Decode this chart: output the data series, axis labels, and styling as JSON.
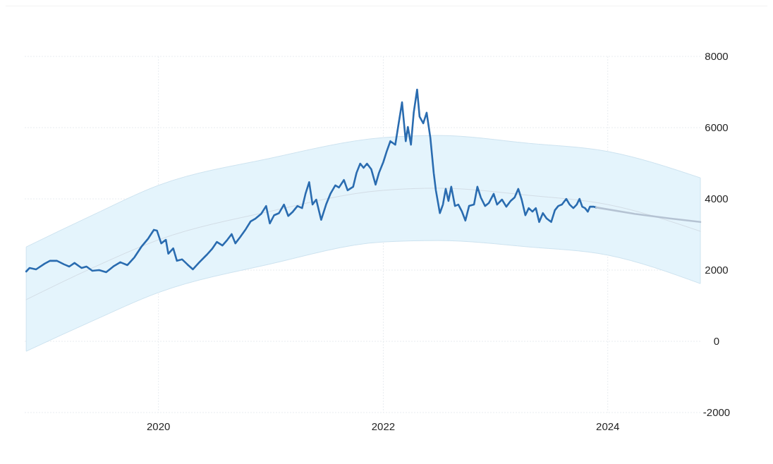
{
  "chart_data": {
    "type": "line",
    "xlim": [
      "2018-10-23",
      "2024-10-28"
    ],
    "xticks": [
      "2020",
      "2022",
      "2024"
    ],
    "ylim": [
      -2000,
      8000
    ],
    "yticks": [
      -2000,
      0,
      2000,
      4000,
      6000,
      8000
    ],
    "grid": true,
    "marker": "none",
    "line_style": "solid",
    "series": [
      {
        "color": "#d3dde6",
        "x": [
          "2018-10-28",
          "2019-05-31",
          "2020-01-01",
          "2020-12-24",
          "2022-01-01",
          "2022-06-28",
          "2023-04-19",
          "2024-01-01",
          "2024-10-28"
        ],
        "values": [
          1170,
          2060,
          2850,
          3640,
          4240,
          4300,
          4100,
          3840,
          3090
        ],
        "lower": [
          -280,
          570,
          1370,
          2160,
          2790,
          2830,
          2650,
          2420,
          1620
        ],
        "upper": [
          2650,
          3540,
          4380,
          5130,
          5720,
          5780,
          5560,
          5330,
          4590
        ]
      },
      {
        "color": "#2a6cb0",
        "x": [
          "2018-10-28",
          "2018-11-08",
          "2018-11-29",
          "2018-12-27",
          "2019-01-13",
          "2019-02-05",
          "2019-02-28",
          "2019-03-17",
          "2019-04-03",
          "2019-04-26",
          "2019-05-12",
          "2019-05-31",
          "2019-06-22",
          "2019-07-15",
          "2019-08-07",
          "2019-08-30",
          "2019-09-22",
          "2019-10-15",
          "2019-11-06",
          "2019-11-29",
          "2019-12-17",
          "2019-12-27",
          "2020-01-10",
          "2020-01-25",
          "2020-02-02",
          "2020-02-18",
          "2020-03-01",
          "2020-03-18",
          "2020-04-04",
          "2020-04-22",
          "2020-05-13",
          "2020-06-05",
          "2020-06-23",
          "2020-07-09",
          "2020-07-27",
          "2020-08-12",
          "2020-08-26",
          "2020-09-07",
          "2020-09-23",
          "2020-10-11",
          "2020-10-27",
          "2020-11-12",
          "2020-11-30",
          "2020-12-16",
          "2020-12-28",
          "2021-01-11",
          "2021-01-27",
          "2021-02-12",
          "2021-02-26",
          "2021-03-13",
          "2021-03-28",
          "2021-04-12",
          "2021-04-23",
          "2021-05-05",
          "2021-05-16",
          "2021-05-28",
          "2021-06-13",
          "2021-06-29",
          "2021-07-13",
          "2021-07-29",
          "2021-08-10",
          "2021-08-26",
          "2021-09-07",
          "2021-09-25",
          "2021-10-06",
          "2021-10-18",
          "2021-10-29",
          "2021-11-09",
          "2021-11-23",
          "2021-12-07",
          "2021-12-18",
          "2022-01-01",
          "2022-01-12",
          "2022-01-24",
          "2022-02-09",
          "2022-02-20",
          "2022-03-03",
          "2022-03-15",
          "2022-03-22",
          "2022-04-01",
          "2022-04-10",
          "2022-04-21",
          "2022-04-29",
          "2022-05-11",
          "2022-05-22",
          "2022-06-03",
          "2022-06-14",
          "2022-06-21",
          "2022-07-04",
          "2022-07-14",
          "2022-07-23",
          "2022-08-01",
          "2022-08-10",
          "2022-08-22",
          "2022-09-02",
          "2022-09-14",
          "2022-09-25",
          "2022-10-07",
          "2022-10-23",
          "2022-11-03",
          "2022-11-14",
          "2022-11-28",
          "2022-12-10",
          "2022-12-26",
          "2023-01-06",
          "2023-01-22",
          "2023-02-05",
          "2023-02-19",
          "2023-03-04",
          "2023-03-16",
          "2023-03-27",
          "2023-04-08",
          "2023-04-19",
          "2023-05-01",
          "2023-05-12",
          "2023-05-23",
          "2023-06-04",
          "2023-06-16",
          "2023-07-01",
          "2023-07-13",
          "2023-07-24",
          "2023-08-05",
          "2023-08-19",
          "2023-08-30",
          "2023-09-11",
          "2023-09-22",
          "2023-10-01",
          "2023-10-10",
          "2023-10-19",
          "2023-10-28",
          "2023-11-04",
          "2023-11-15",
          "2023-11-24"
        ],
        "values": [
          1960,
          2060,
          2020,
          2180,
          2260,
          2260,
          2160,
          2100,
          2200,
          2060,
          2100,
          1980,
          2000,
          1940,
          2100,
          2220,
          2140,
          2360,
          2650,
          2890,
          3130,
          3110,
          2750,
          2850,
          2460,
          2610,
          2260,
          2300,
          2160,
          2020,
          2220,
          2420,
          2590,
          2790,
          2690,
          2850,
          3010,
          2750,
          2930,
          3150,
          3370,
          3450,
          3580,
          3800,
          3310,
          3540,
          3600,
          3840,
          3520,
          3640,
          3800,
          3740,
          4140,
          4470,
          3840,
          3980,
          3410,
          3840,
          4140,
          4380,
          4320,
          4530,
          4240,
          4340,
          4730,
          4990,
          4870,
          4990,
          4830,
          4400,
          4730,
          5030,
          5330,
          5620,
          5520,
          6120,
          6710,
          5620,
          6020,
          5520,
          6420,
          7070,
          6310,
          6120,
          6420,
          5720,
          4730,
          4240,
          3600,
          3840,
          4280,
          3940,
          4340,
          3800,
          3840,
          3640,
          3390,
          3800,
          3840,
          4340,
          4040,
          3800,
          3880,
          4140,
          3840,
          3980,
          3780,
          3940,
          4040,
          4280,
          3980,
          3540,
          3740,
          3640,
          3740,
          3350,
          3600,
          3450,
          3350,
          3680,
          3800,
          3840,
          4000,
          3840,
          3740,
          3840,
          4000,
          3780,
          3740,
          3640,
          3780,
          3780,
          3760
        ]
      },
      {
        "color": "#b5c3d3",
        "x": [
          "2023-11-24",
          "2024-03-28",
          "2024-07-20",
          "2024-10-28"
        ],
        "values": [
          3760,
          3580,
          3450,
          3350
        ]
      }
    ]
  }
}
